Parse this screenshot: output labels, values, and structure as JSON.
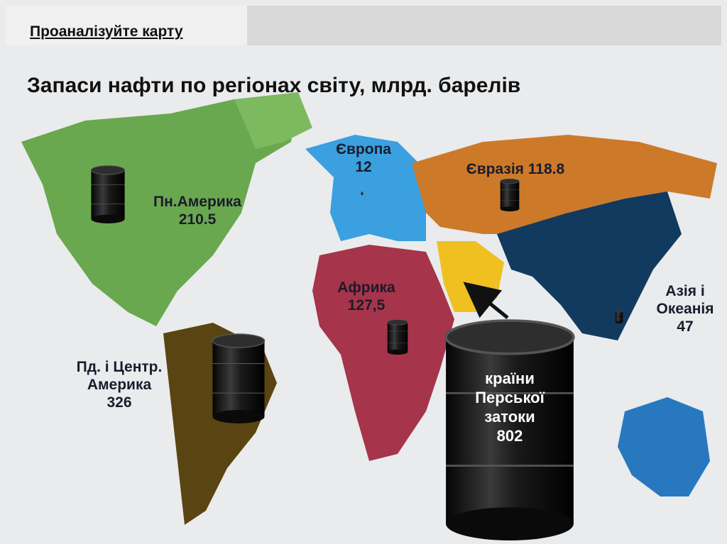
{
  "header": "Проаналізуйте карту",
  "title": "Запаси нафти по регіонах світу, млрд. барелів",
  "regions": [
    {
      "name": "Пн.Америка",
      "value": 210.5
    },
    {
      "name": "Пд. і Центр. Америка",
      "value": 326
    },
    {
      "name": "Європа",
      "value": 12
    },
    {
      "name": "Африка",
      "value": 127.5,
      "value_label": "127,5"
    },
    {
      "name": "Євразія",
      "value": 118.8
    },
    {
      "name": "країни Перської затоки",
      "value": 802
    },
    {
      "name": "Азія і Океанія",
      "value": 47
    }
  ]
}
